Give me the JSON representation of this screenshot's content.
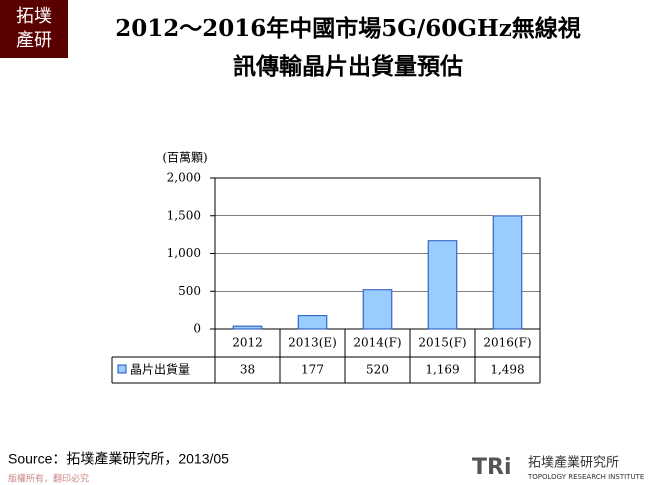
{
  "page": {
    "logo": [
      "拓墣",
      "產研"
    ],
    "source": "Source：拓墣產業研究所，2013/05",
    "copyright": "版權所有，翻印必究",
    "brand": "TRi",
    "brand_name": "拓墣產業研究所",
    "brand_sub": "TOPOLOGY RESEARCH INSTITUTE"
  },
  "chart_data": {
    "type": "bar",
    "title_lines": [
      "2012～2016年中國市場5G/60GHz無線視",
      "訊傳輸晶片出貨量預估"
    ],
    "y_label": "(百萬顆)",
    "categories": [
      "2012",
      "2013(E)",
      "2014(F)",
      "2015(F)",
      "2016(F)"
    ],
    "series": [
      {
        "name": "晶片出貨量",
        "color": "#99ccff",
        "values": [
          38,
          177,
          520,
          1169,
          1498
        ],
        "value_labels": [
          "38",
          "177",
          "520",
          "1,169",
          "1,498"
        ]
      }
    ],
    "ylim": [
      0,
      2000
    ],
    "yticks": [
      0,
      500,
      {
        "value": 1000,
        "label": "1,000"
      },
      {
        "value": 1500,
        "label": "1,500"
      },
      {
        "value": 2000,
        "label": "2,000"
      }
    ],
    "grid": true
  }
}
